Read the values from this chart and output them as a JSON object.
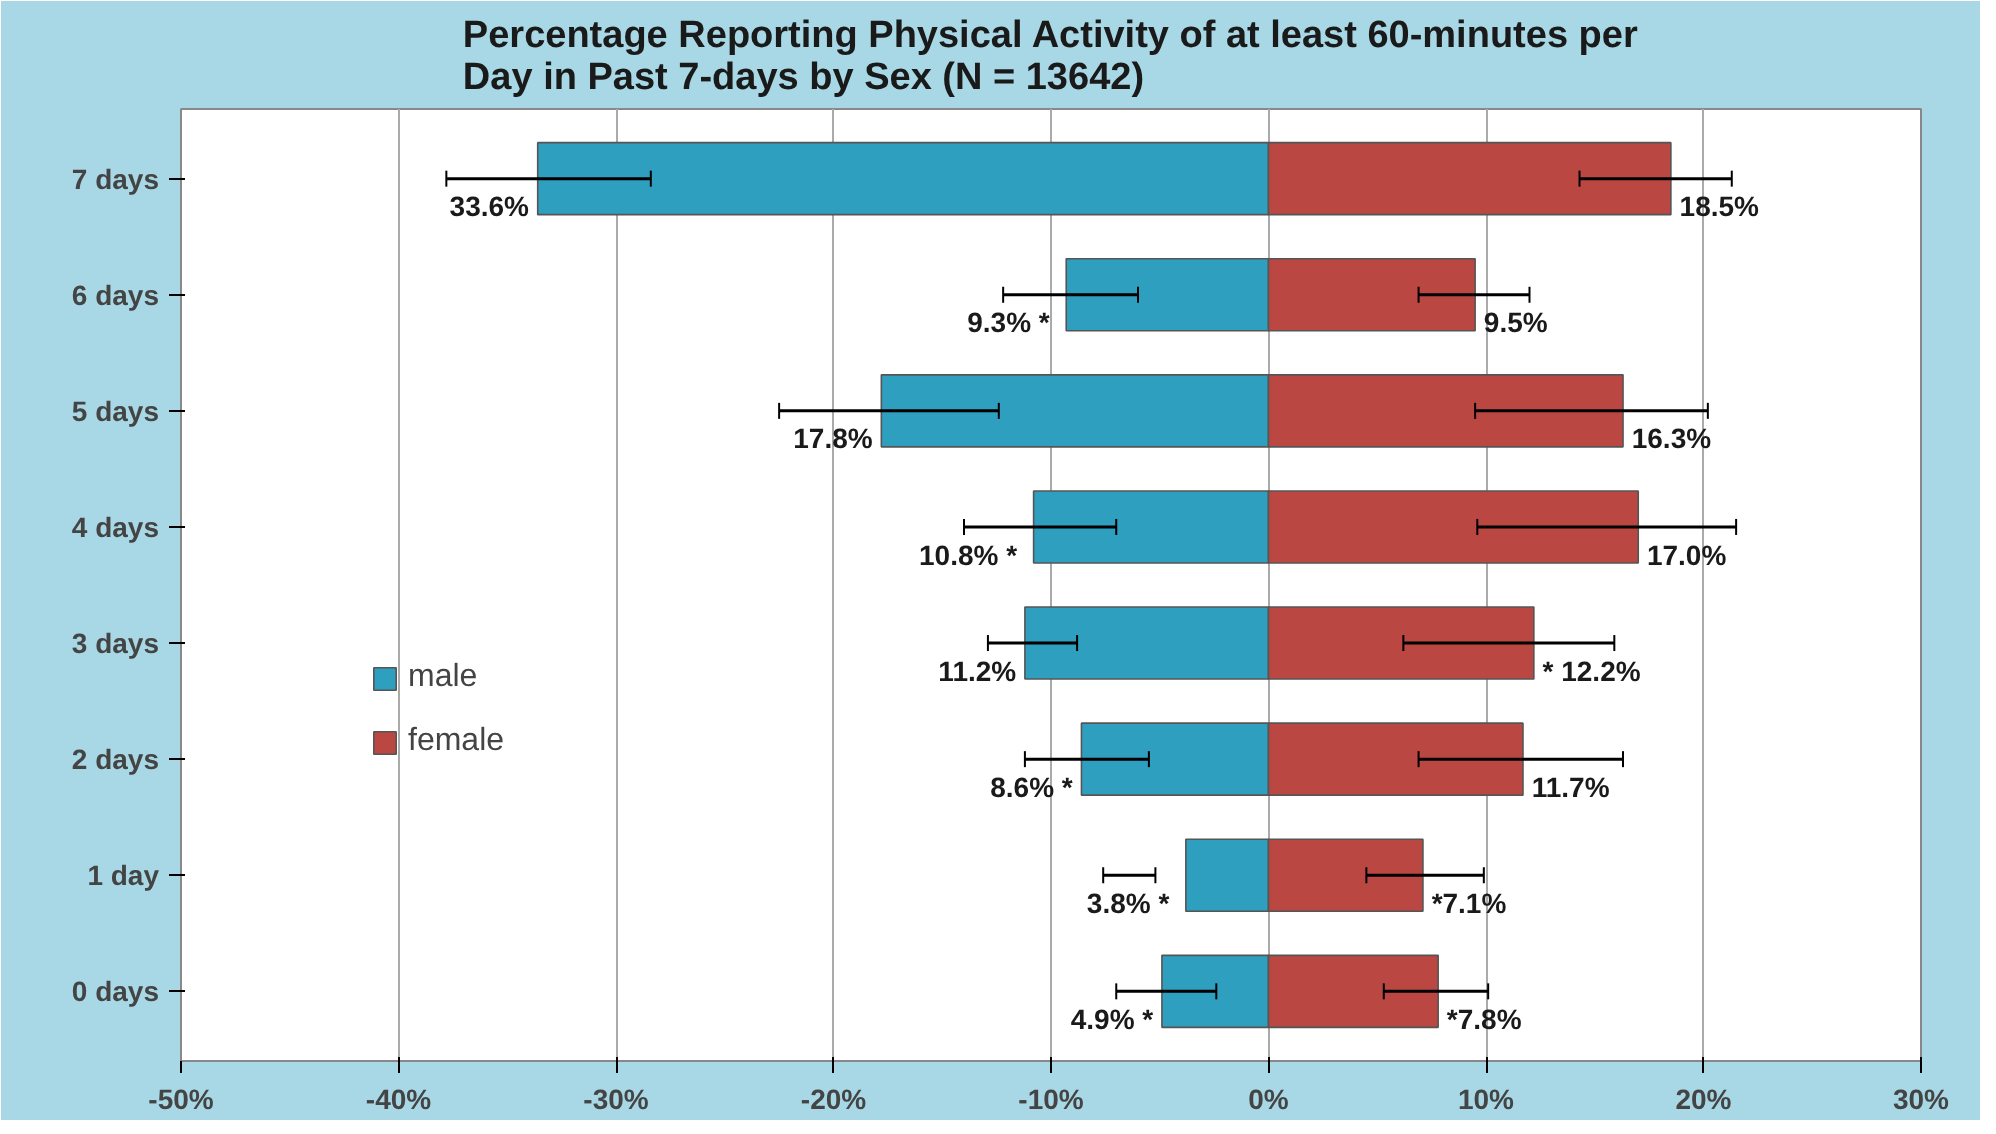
{
  "chart_data": {
    "type": "bar",
    "orientation": "horizontal",
    "title": "Percentage Reporting Physical Activity of at least 60-minutes per\nDay in Past 7-days by Sex (N = 13642)",
    "categories": [
      "7 days",
      "6 days",
      "5 days",
      "4 days",
      "3 days",
      "2 days",
      "1 day",
      "0 days"
    ],
    "series": [
      {
        "name": "male",
        "color": "#2f9fbf",
        "values": [
          33.6,
          9.3,
          17.8,
          10.8,
          11.2,
          8.6,
          3.8,
          4.9
        ],
        "base": [
          -33.6,
          -9.3,
          -17.8,
          -10.8,
          -11.2,
          -8.6,
          -3.8,
          -4.9
        ],
        "value_labels": [
          "33.6%",
          "9.3%  *",
          "17.8%",
          "10.8%  *",
          "11.2%",
          "8.6% *",
          "3.8%  *",
          "4.9% *"
        ],
        "errors": [
          [
            -37.8,
            -28.4
          ],
          [
            -12.2,
            -6.0
          ],
          [
            -22.5,
            -12.4
          ],
          [
            -14.0,
            -7.0
          ],
          [
            -12.9,
            -8.8
          ],
          [
            -11.2,
            -5.5
          ],
          [
            -7.6,
            -5.2
          ],
          [
            -7.0,
            -2.4
          ]
        ]
      },
      {
        "name": "female",
        "color": "#bb4743",
        "values": [
          18.5,
          9.5,
          16.3,
          17.0,
          12.2,
          11.7,
          7.1,
          7.8
        ],
        "value_labels": [
          "18.5%",
          "9.5%",
          "16.3%",
          "17.0%",
          "*  12.2%",
          "11.7%",
          "*7.1%",
          "*7.8%"
        ],
        "errors": [
          [
            14.3,
            21.3
          ],
          [
            6.9,
            12.0
          ],
          [
            9.5,
            20.2
          ],
          [
            9.6,
            21.5
          ],
          [
            6.2,
            15.9
          ],
          [
            6.9,
            16.3
          ],
          [
            4.5,
            9.9
          ],
          [
            5.3,
            10.1
          ]
        ]
      }
    ],
    "xlim": [
      -50,
      30
    ],
    "xticks": [
      {
        "value": -50,
        "label": "-50%"
      },
      {
        "value": -40,
        "label": "-40%"
      },
      {
        "value": -30,
        "label": "-30%"
      },
      {
        "value": -20,
        "label": "-20%"
      },
      {
        "value": -10,
        "label": "-10%"
      },
      {
        "value": 0,
        "label": "0%"
      },
      {
        "value": 10,
        "label": "10%"
      },
      {
        "value": 20,
        "label": "20%"
      },
      {
        "value": 30,
        "label": "30%"
      }
    ],
    "grid": "x",
    "legend": "left"
  }
}
